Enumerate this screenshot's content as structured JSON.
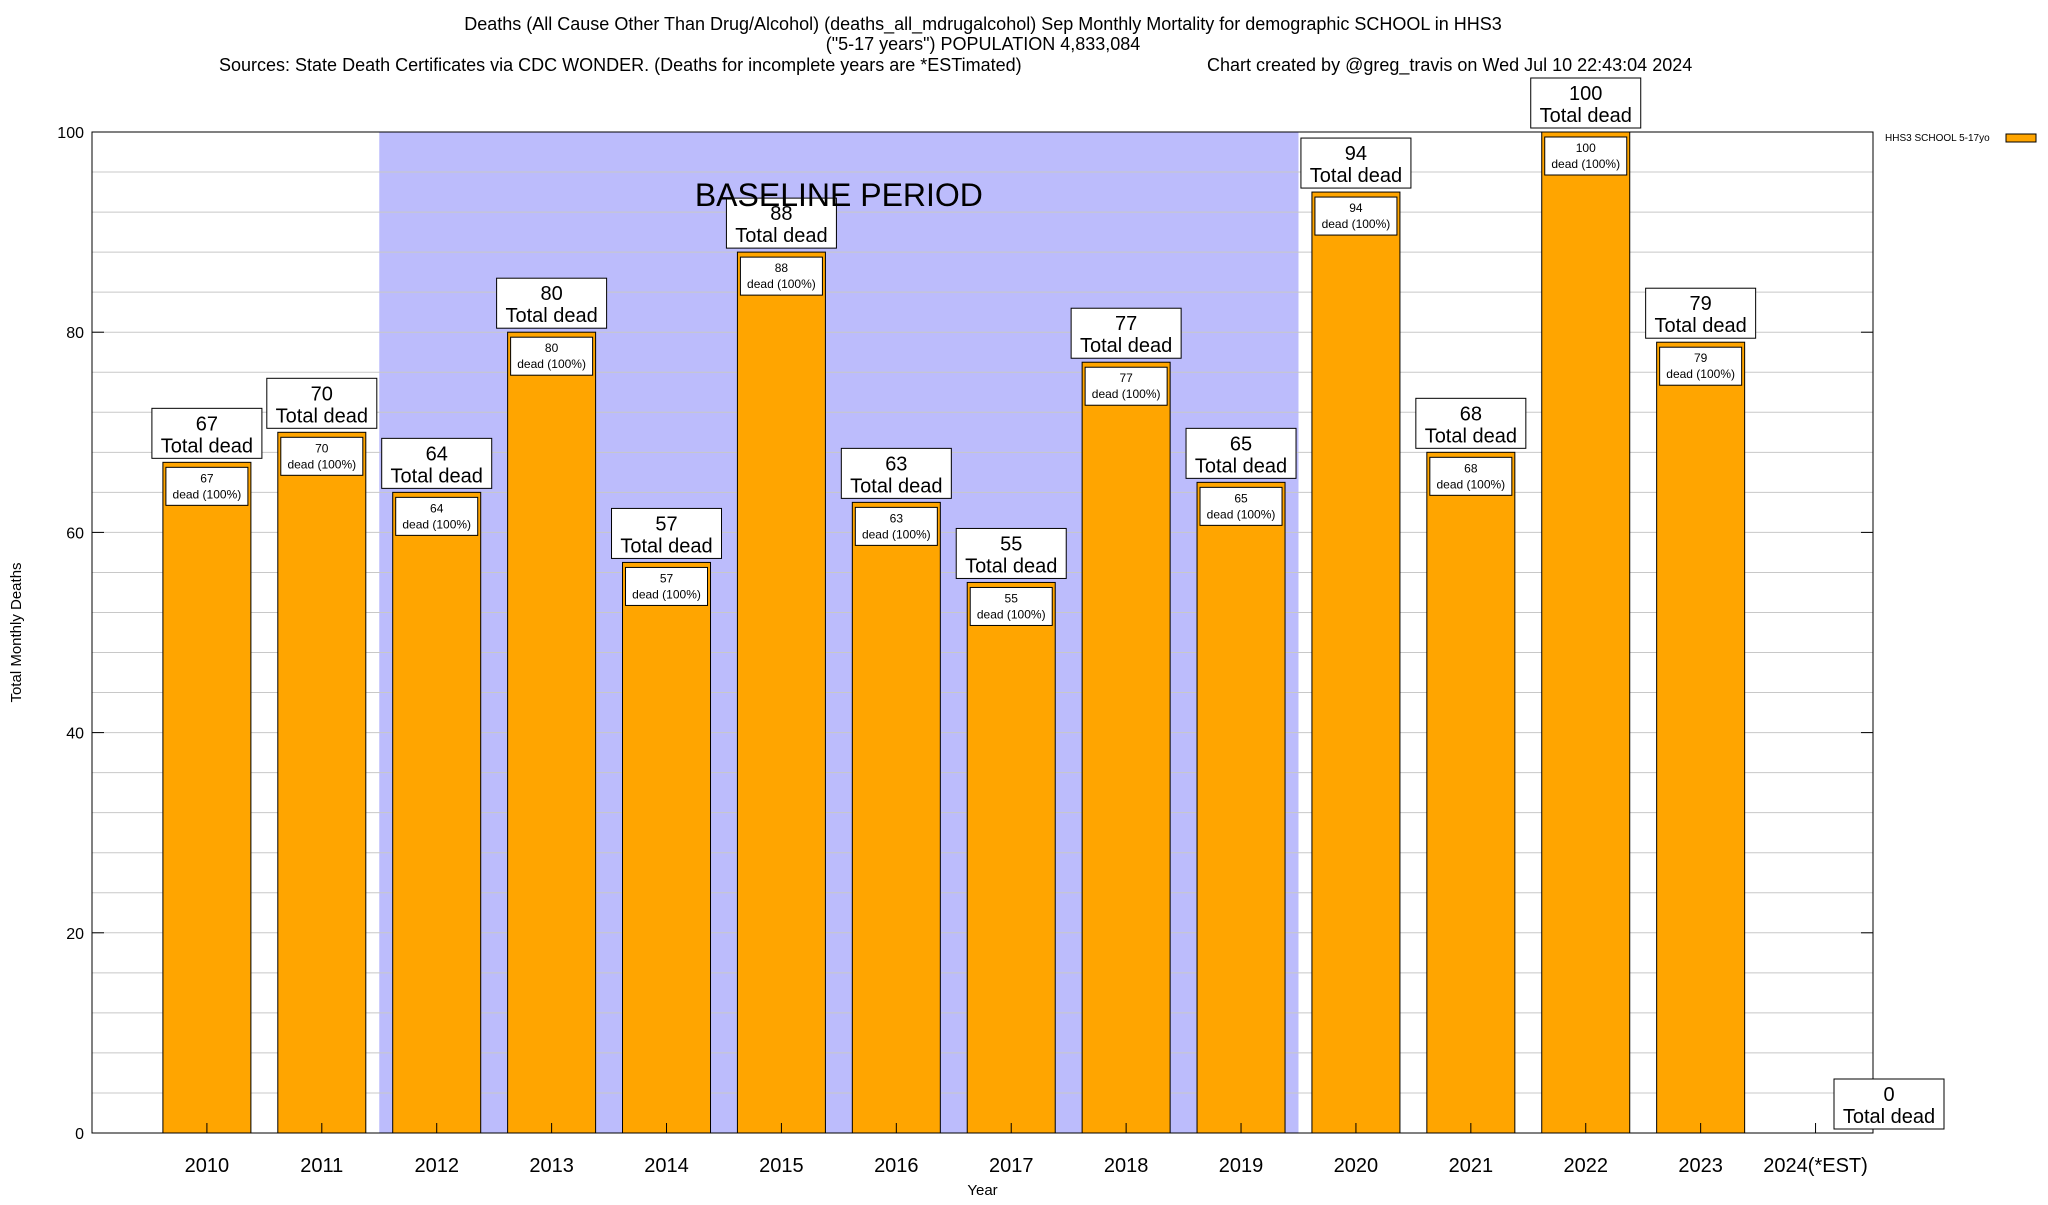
{
  "chart_data": {
    "type": "bar",
    "title_lines": [
      "Deaths (All Cause Other Than Drug/Alcohol) (deaths_all_mdrugalcohol) Sep Monthly Mortality for demographic SCHOOL in HHS3",
      "(\"5-17 years\") POPULATION 4,833,084"
    ],
    "sources": "Sources: State Death Certificates via CDC WONDER. (Deaths for incomplete years are *ESTimated)",
    "credit": "Chart created by @greg_travis on Wed Jul 10 22:43:04 2024",
    "xlabel": "Year",
    "ylabel": "Total Monthly Deaths",
    "ylim": [
      0,
      100
    ],
    "yticks": [
      0,
      20,
      40,
      60,
      80,
      100
    ],
    "grid": true,
    "categories": [
      "2010",
      "2011",
      "2012",
      "2013",
      "2014",
      "2015",
      "2016",
      "2017",
      "2018",
      "2019",
      "2020",
      "2021",
      "2022",
      "2023",
      "2024(*EST)"
    ],
    "series": [
      {
        "name": "HHS3 SCHOOL 5-17yo",
        "color": "#ffa500",
        "values": [
          67,
          70,
          64,
          80,
          57,
          88,
          63,
          55,
          77,
          65,
          94,
          68,
          100,
          79,
          0
        ]
      }
    ],
    "total_label_suffix": "Total dead",
    "inner_label_suffix": "dead (100%)",
    "baseline": {
      "label": "BASELINE PERIOD",
      "from": "2012",
      "to": "2019",
      "color": "#bcbcfc"
    },
    "legend_position": "top-right"
  }
}
